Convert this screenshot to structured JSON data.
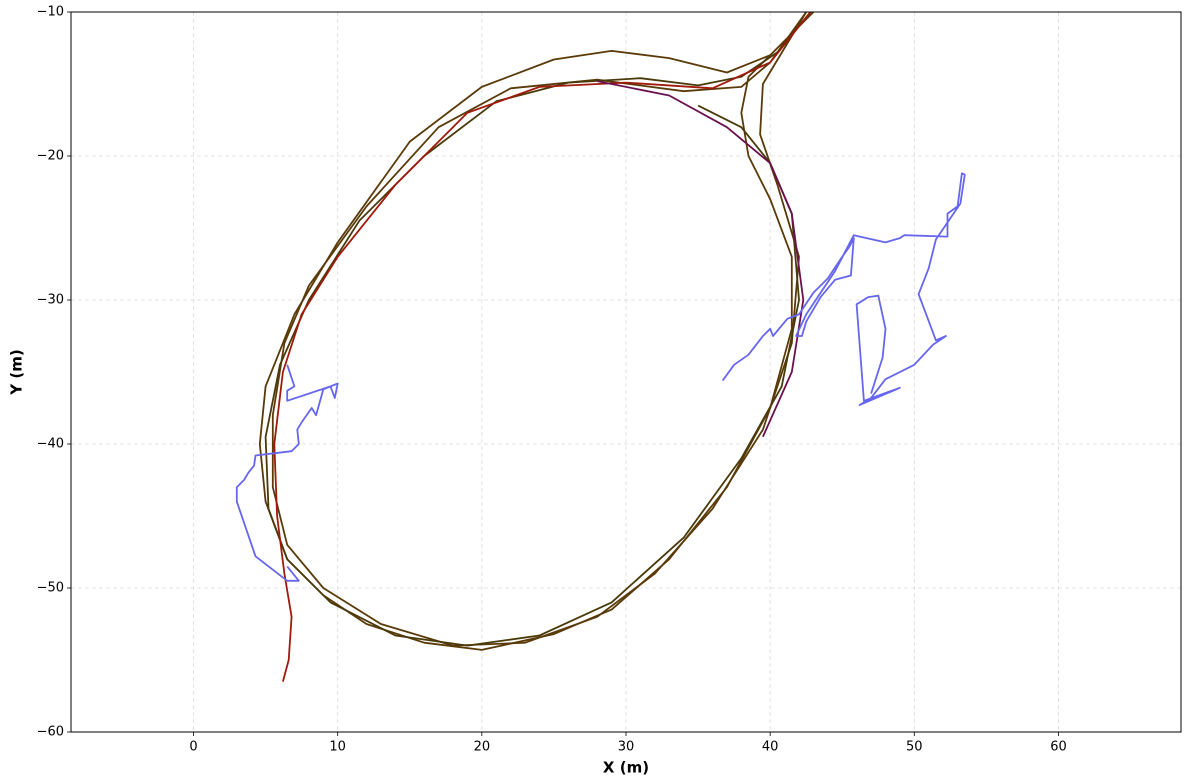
{
  "chart_data": {
    "type": "line",
    "xlabel": "X (m)",
    "ylabel": "Y (m)",
    "xlim": [
      -8.5,
      68.5
    ],
    "ylim": [
      -60,
      -10
    ],
    "xticks": [
      0,
      10,
      20,
      30,
      40,
      50,
      60
    ],
    "yticks": [
      {
        "value": -60,
        "label": "−60"
      },
      {
        "value": -50,
        "label": "−50"
      },
      {
        "value": -40,
        "label": "−40"
      },
      {
        "value": -30,
        "label": "−30"
      },
      {
        "value": -20,
        "label": "−20"
      },
      {
        "value": -10,
        "label": "−10"
      }
    ],
    "grid": true,
    "series": [
      {
        "color": "#5a3a08",
        "x": [
          43,
          40,
          37,
          33,
          29,
          25,
          20,
          15,
          10,
          7,
          5,
          4.6,
          5,
          6.5,
          9,
          12,
          16,
          20,
          25,
          29,
          33,
          37,
          40,
          41.5,
          41.5,
          40,
          38.5,
          38,
          38.5,
          41,
          43
        ],
        "values": [
          -10,
          -13,
          -14.2,
          -13.2,
          -12.7,
          -13.3,
          -15.2,
          -19,
          -26,
          -31,
          -36,
          -40,
          -44,
          -48,
          -50.5,
          -52.5,
          -53.8,
          -54.3,
          -53.2,
          -51.5,
          -48,
          -43,
          -37.5,
          -32,
          -27,
          -23,
          -20,
          -17,
          -14.5,
          -12,
          -10
        ]
      },
      {
        "color": "#5a3a08",
        "x": [
          42.5,
          40,
          38,
          34,
          28,
          22,
          17,
          12,
          8,
          6.3,
          5.5,
          5.5,
          6.5,
          9,
          13,
          18,
          23,
          28,
          32,
          36,
          39.5,
          41.5,
          42,
          40.5,
          39.3,
          39.5,
          42.5
        ],
        "values": [
          -10,
          -13.5,
          -15.2,
          -15.5,
          -14.7,
          -15.3,
          -18,
          -23.5,
          -29,
          -33,
          -38,
          -43,
          -47,
          -50,
          -52.5,
          -54,
          -53.8,
          -52,
          -49,
          -44.5,
          -39,
          -33,
          -27,
          -22,
          -18.5,
          -15,
          -10
        ]
      },
      {
        "color": "#4a3a0a",
        "x": [
          42.8,
          40.5,
          38,
          35,
          31,
          26,
          21,
          16,
          11.5,
          8,
          6,
          5,
          5.2,
          6.5,
          9.5,
          14,
          19,
          24,
          29,
          34,
          38,
          40.8,
          42,
          41.5,
          40,
          38,
          35
        ],
        "values": [
          -10,
          -12.8,
          -14.5,
          -15.1,
          -14.6,
          -14.9,
          -16.2,
          -20,
          -24.5,
          -30,
          -34.5,
          -39.5,
          -44.5,
          -48,
          -51,
          -53.3,
          -54,
          -53.3,
          -51,
          -46.5,
          -41,
          -36,
          -30,
          -24,
          -20.5,
          -18,
          -16.5
        ]
      },
      {
        "color": "#a01a0a",
        "x": [
          42.8,
          40,
          36,
          30,
          24,
          19,
          14,
          10,
          7.5,
          6.2,
          5.6,
          5.8,
          6.3,
          6.8,
          6.6,
          6.2
        ],
        "values": [
          -10,
          -13.5,
          -15.3,
          -14.9,
          -15.2,
          -17,
          -22,
          -27,
          -31,
          -35,
          -40,
          -45,
          -49,
          -52,
          -55,
          -56.5
        ]
      },
      {
        "color": "#6a1050",
        "x": [
          28,
          33,
          37,
          40,
          41.5,
          42.3,
          41.5,
          39.5
        ],
        "values": [
          -14.8,
          -15.8,
          -18,
          -20.5,
          -24,
          -30,
          -35,
          -39.5
        ]
      },
      {
        "color": "#6666ee",
        "x": [
          6.5,
          7,
          6.5,
          6.5,
          9.5,
          9.8,
          10,
          9,
          8.5,
          8.2,
          7.5,
          7.2,
          7.3,
          6.8,
          4.3,
          4.2,
          3.8,
          3.5,
          3,
          3,
          4.3,
          6.5,
          7.3,
          6.5,
          null,
          36.7,
          37.5,
          38.5,
          39.5,
          40,
          40.2,
          41.2,
          42,
          43,
          44,
          45,
          45.5,
          45.8,
          45.6,
          44.5,
          43.5,
          42.5,
          42.2,
          41.8,
          42.5,
          43.5,
          44.5,
          45.8,
          48,
          49,
          49.3,
          52.3,
          52.3,
          53,
          53.3,
          53.5,
          53.2,
          51.5,
          51,
          50.3,
          51.5,
          52.2,
          51.3,
          50,
          48,
          47,
          46.2,
          49,
          46.5,
          46,
          46.8,
          47.5,
          48,
          47.8,
          47
        ],
        "values": [
          -34.5,
          -36,
          -36.3,
          -37,
          -36,
          -36.8,
          -35.8,
          -36.2,
          -38,
          -37.5,
          -38.5,
          -39,
          -40,
          -40.5,
          -40.8,
          -41.5,
          -42,
          -42.5,
          -43,
          -44,
          -47.8,
          -49.5,
          -49.5,
          -48.5,
          null,
          -35.6,
          -34.5,
          -33.8,
          -32.5,
          -32,
          -32.5,
          -31.3,
          -31,
          -29.5,
          -28.5,
          -27,
          -26.3,
          -25.7,
          -28.3,
          -28.6,
          -29.8,
          -31.5,
          -32.5,
          -32.5,
          -31,
          -29.5,
          -28,
          -25.5,
          -26,
          -25.7,
          -25.5,
          -25.6,
          -24,
          -23.5,
          -21.2,
          -21.3,
          -23.3,
          -25.8,
          -27.8,
          -29.6,
          -32.8,
          -32.5,
          -33.1,
          -34.5,
          -35.5,
          -36.8,
          -37.3,
          -36.1,
          -37,
          -30.3,
          -29.8,
          -29.7,
          -32,
          -34,
          -36.5
        ]
      }
    ]
  }
}
